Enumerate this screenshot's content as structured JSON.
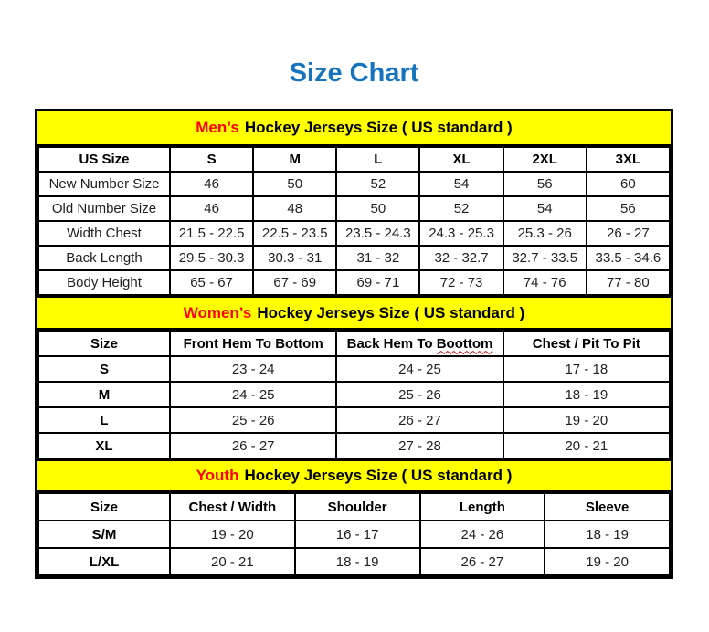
{
  "page": {
    "title": "Size Chart",
    "title_color": "#1674BE",
    "background": "#FFFFFF"
  },
  "colors": {
    "band_background": "#FFFF00",
    "accent_red": "#FF0000",
    "border_black": "#000000",
    "text_dark": "#1F1F1F"
  },
  "tables": [
    {
      "id": "mens",
      "header_accent": "Men’s",
      "header_rest": "Hockey Jerseys Size ( US standard )",
      "columns": [
        {
          "label": "US Size"
        },
        {
          "label": "S"
        },
        {
          "label": "M"
        },
        {
          "label": "L"
        },
        {
          "label": "XL"
        },
        {
          "label": "2XL"
        },
        {
          "label": "3XL"
        }
      ],
      "rows": [
        {
          "label": "New Number Size",
          "values": [
            "46",
            "50",
            "52",
            "54",
            "56",
            "60"
          ]
        },
        {
          "label": "Old Number Size",
          "values": [
            "46",
            "48",
            "50",
            "52",
            "54",
            "56"
          ]
        },
        {
          "label": "Width Chest",
          "values": [
            "21.5 - 22.5",
            "22.5 - 23.5",
            "23.5 - 24.3",
            "24.3 - 25.3",
            "25.3 - 26",
            "26 - 27"
          ]
        },
        {
          "label": "Back Length",
          "values": [
            "29.5 - 30.3",
            "30.3 - 31",
            "31 - 32",
            "32 - 32.7",
            "32.7 - 33.5",
            "33.5 - 34.6"
          ]
        },
        {
          "label": "Body Height",
          "values": [
            "65 - 67",
            "67 - 69",
            "69 - 71",
            "72 - 73",
            "74 - 76",
            "77 - 80"
          ]
        }
      ]
    },
    {
      "id": "womens",
      "header_accent": "Women’s",
      "header_rest": "Hockey Jerseys Size ( US standard )",
      "columns": [
        {
          "label": "Size"
        },
        {
          "label": "Front Hem To Bottom"
        },
        {
          "label": "Back Hem To Boottom",
          "wavy_last_word": true
        },
        {
          "label": "Chest / Pit To Pit"
        }
      ],
      "rows": [
        {
          "label": "S",
          "values": [
            "23 - 24",
            "24 - 25",
            "17 - 18"
          ]
        },
        {
          "label": "M",
          "values": [
            "24 - 25",
            "25 - 26",
            "18 - 19"
          ]
        },
        {
          "label": "L",
          "values": [
            "25 - 26",
            "26 - 27",
            "19 - 20"
          ]
        },
        {
          "label": "XL",
          "values": [
            "26 - 27",
            "27 - 28",
            "20 - 21"
          ]
        }
      ]
    },
    {
      "id": "youth",
      "header_accent": "Youth",
      "header_rest": "Hockey Jerseys Size ( US standard )",
      "columns": [
        {
          "label": "Size"
        },
        {
          "label": "Chest / Width"
        },
        {
          "label": "Shoulder"
        },
        {
          "label": "Length"
        },
        {
          "label": "Sleeve"
        }
      ],
      "rows": [
        {
          "label": "S/M",
          "values": [
            "19 - 20",
            "16 - 17",
            "24 - 26",
            "18 - 19"
          ]
        },
        {
          "label": "L/XL",
          "values": [
            "20 - 21",
            "18 - 19",
            "26 - 27",
            "19 - 20"
          ]
        }
      ]
    }
  ]
}
